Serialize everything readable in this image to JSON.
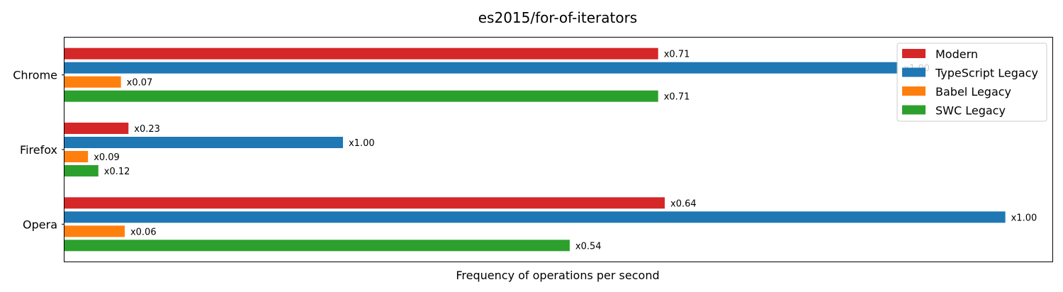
{
  "chart_data": {
    "type": "bar",
    "orientation": "horizontal",
    "title": "es2015/for-of-iterators",
    "xlabel": "Frequency of operations per second",
    "ylabel": "",
    "categories": [
      "Chrome",
      "Firefox",
      "Opera"
    ],
    "x_ticks_visible": false,
    "grid": false,
    "legend_position": "top-right",
    "colors": {
      "Modern": "#d62728",
      "TypeScript Legacy": "#1f77b4",
      "Babel Legacy": "#ff7f0e",
      "SWC Legacy": "#2ca02c"
    },
    "series": [
      {
        "name": "Modern",
        "values": [
          0.631,
          0.068,
          0.638
        ],
        "labels": [
          "x0.71",
          "x0.23",
          "x0.64"
        ]
      },
      {
        "name": "TypeScript Legacy",
        "values": [
          0.886,
          0.296,
          1.0
        ],
        "labels": [
          "x1.00",
          "x1.00",
          "x1.00"
        ]
      },
      {
        "name": "Babel Legacy",
        "values": [
          0.06,
          0.025,
          0.064
        ],
        "labels": [
          "x0.07",
          "x0.09",
          "x0.06"
        ]
      },
      {
        "name": "SWC Legacy",
        "values": [
          0.631,
          0.036,
          0.537
        ],
        "labels": [
          "x0.71",
          "x0.12",
          "x0.54"
        ]
      }
    ],
    "xlim": [
      0,
      1.05
    ]
  }
}
